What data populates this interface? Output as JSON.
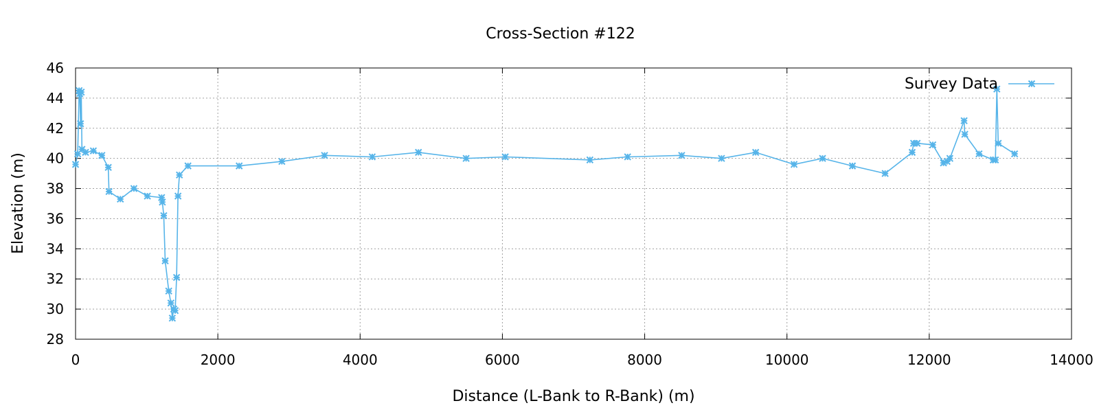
{
  "chart_data": {
    "type": "line",
    "title": "Cross-Section #122",
    "xlabel": "Distance (L-Bank to R-Bank) (m)",
    "ylabel": "Elevation (m)",
    "xlim": [
      0,
      14000
    ],
    "ylim": [
      28,
      46
    ],
    "xticks": [
      0,
      2000,
      4000,
      6000,
      8000,
      10000,
      12000,
      14000
    ],
    "yticks": [
      28,
      30,
      32,
      34,
      36,
      38,
      40,
      42,
      44,
      46
    ],
    "grid": true,
    "legend_position": "top-right",
    "series": [
      {
        "name": "Survey Data",
        "color": "#56b4e9",
        "marker": "asterisk",
        "x": [
          0,
          30,
          50,
          60,
          70,
          80,
          90,
          140,
          250,
          370,
          460,
          470,
          630,
          820,
          1010,
          1210,
          1220,
          1240,
          1260,
          1310,
          1340,
          1360,
          1380,
          1400,
          1420,
          1440,
          1460,
          1580,
          2300,
          2900,
          3500,
          4170,
          4820,
          5490,
          6040,
          7230,
          7760,
          8520,
          9080,
          9560,
          10100,
          10500,
          10920,
          11380,
          11760,
          11780,
          11830,
          12050,
          12200,
          12250,
          12290,
          12490,
          12500,
          12700,
          12900,
          12930,
          12950,
          12970,
          13200
        ],
        "y": [
          39.6,
          40.3,
          44.5,
          44.3,
          42.3,
          44.4,
          40.6,
          40.4,
          40.5,
          40.2,
          39.4,
          37.8,
          37.3,
          38.0,
          37.5,
          37.4,
          37.1,
          36.2,
          33.2,
          31.2,
          30.4,
          29.4,
          30.0,
          29.9,
          32.1,
          37.5,
          38.9,
          39.5,
          39.5,
          39.8,
          40.2,
          40.1,
          40.4,
          40.0,
          40.1,
          39.9,
          40.1,
          40.2,
          40.0,
          40.4,
          39.6,
          40.0,
          39.5,
          39.0,
          40.4,
          41.0,
          41.0,
          40.9,
          39.7,
          39.8,
          40.0,
          42.5,
          41.6,
          40.3,
          39.9,
          39.9,
          44.6,
          41.0,
          40.3
        ]
      }
    ]
  }
}
